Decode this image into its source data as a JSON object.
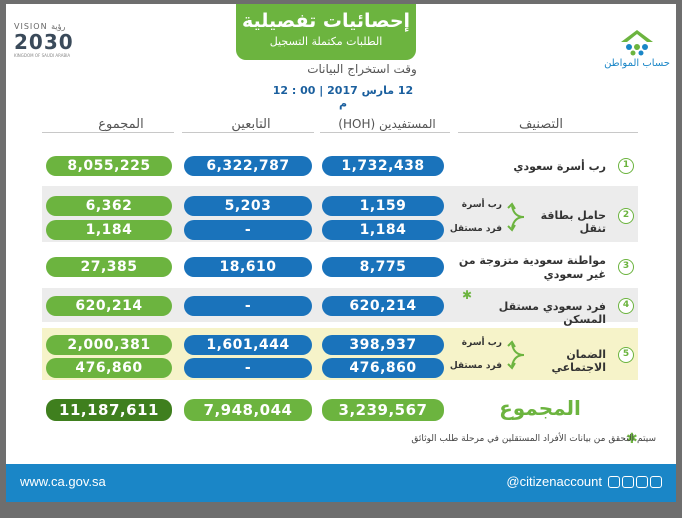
{
  "header": {
    "title": "إحصائيات تفصيلية",
    "subtitle": "الطلبات مكتملة التسجيل",
    "time_label": "وقت استخراج البيانات",
    "time_value": "12 مارس 2017 | 00 : 12 م"
  },
  "logos": {
    "vision_top": "VISION رؤية",
    "vision_year": "2030",
    "vision_sub": "KINGDOM OF SAUDI ARABIA",
    "account_name": "حساب المواطن"
  },
  "columns": {
    "category": "التصنيف",
    "beneficiaries": "المستفيدين (HOH)",
    "dependents": "التابعين",
    "total": "المجموع"
  },
  "rows": [
    {
      "num": "1",
      "label": "رب أسرة سعودي",
      "beneficiaries": "1,732,438",
      "dependents": "6,322,787",
      "total": "8,055,225"
    },
    {
      "num": "2",
      "label": "حامل بطاقة تنقل",
      "sub_a": "رب أسرة",
      "sub_b": "فرد مستقل",
      "a": {
        "beneficiaries": "1,159",
        "dependents": "5,203",
        "total": "6,362"
      },
      "b": {
        "beneficiaries": "1,184",
        "dependents": "-",
        "total": "1,184"
      }
    },
    {
      "num": "3",
      "label": "مواطنة سعودية متزوجة من غير سعودي",
      "beneficiaries": "8,775",
      "dependents": "18,610",
      "total": "27,385"
    },
    {
      "num": "4",
      "label": "فرد سعودي مستقل المسكن",
      "beneficiaries": "620,214",
      "dependents": "-",
      "total": "620,214"
    },
    {
      "num": "5",
      "label": "الضمان الاجتماعي",
      "sub_a": "رب أسرة",
      "sub_b": "فرد مستقل",
      "a": {
        "beneficiaries": "398,937",
        "dependents": "1,601,444",
        "total": "2,000,381"
      },
      "b": {
        "beneficiaries": "476,860",
        "dependents": "-",
        "total": "476,860"
      }
    }
  ],
  "totals": {
    "label": "المجموع",
    "beneficiaries": "3,239,567",
    "dependents": "7,948,044",
    "total": "11,187,611"
  },
  "note": "سيتم التحقق من بيانات الأفراد المستقلين في مرحلة طلب الوثائق",
  "footer": {
    "url": "www.ca.gov.sa",
    "handle": "@citizenaccount"
  },
  "colors": {
    "green": "#6cb43f",
    "blue": "#1a73bb",
    "footer": "#1a86c7"
  }
}
